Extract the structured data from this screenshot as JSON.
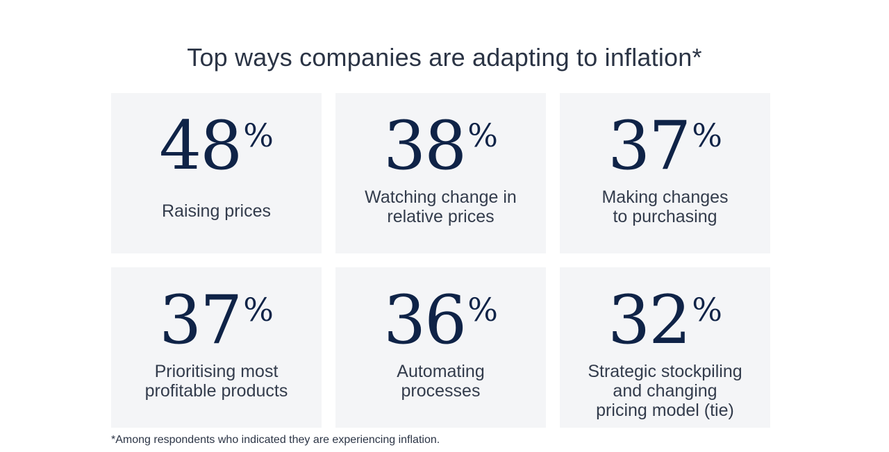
{
  "chart_data": {
    "type": "table",
    "title": "Top ways companies are adapting to inflation*",
    "unit": "%",
    "items": [
      {
        "value": 48,
        "label_lines": [
          "Raising prices"
        ]
      },
      {
        "value": 38,
        "label_lines": [
          "Watching change in",
          "relative prices"
        ]
      },
      {
        "value": 37,
        "label_lines": [
          "Making changes",
          "to purchasing"
        ]
      },
      {
        "value": 37,
        "label_lines": [
          "Prioritising most",
          "profitable products"
        ]
      },
      {
        "value": 36,
        "label_lines": [
          "Automating",
          "processes"
        ]
      },
      {
        "value": 32,
        "label_lines": [
          "Strategic stockpiling",
          "and changing",
          "pricing model (tie)"
        ]
      }
    ],
    "footnote": "*Among respondents who indicated they are experiencing inflation."
  },
  "colors": {
    "number": "#0f2347",
    "text": "#333c4c",
    "card_background": "#f4f5f7",
    "page_background": "#ffffff"
  }
}
